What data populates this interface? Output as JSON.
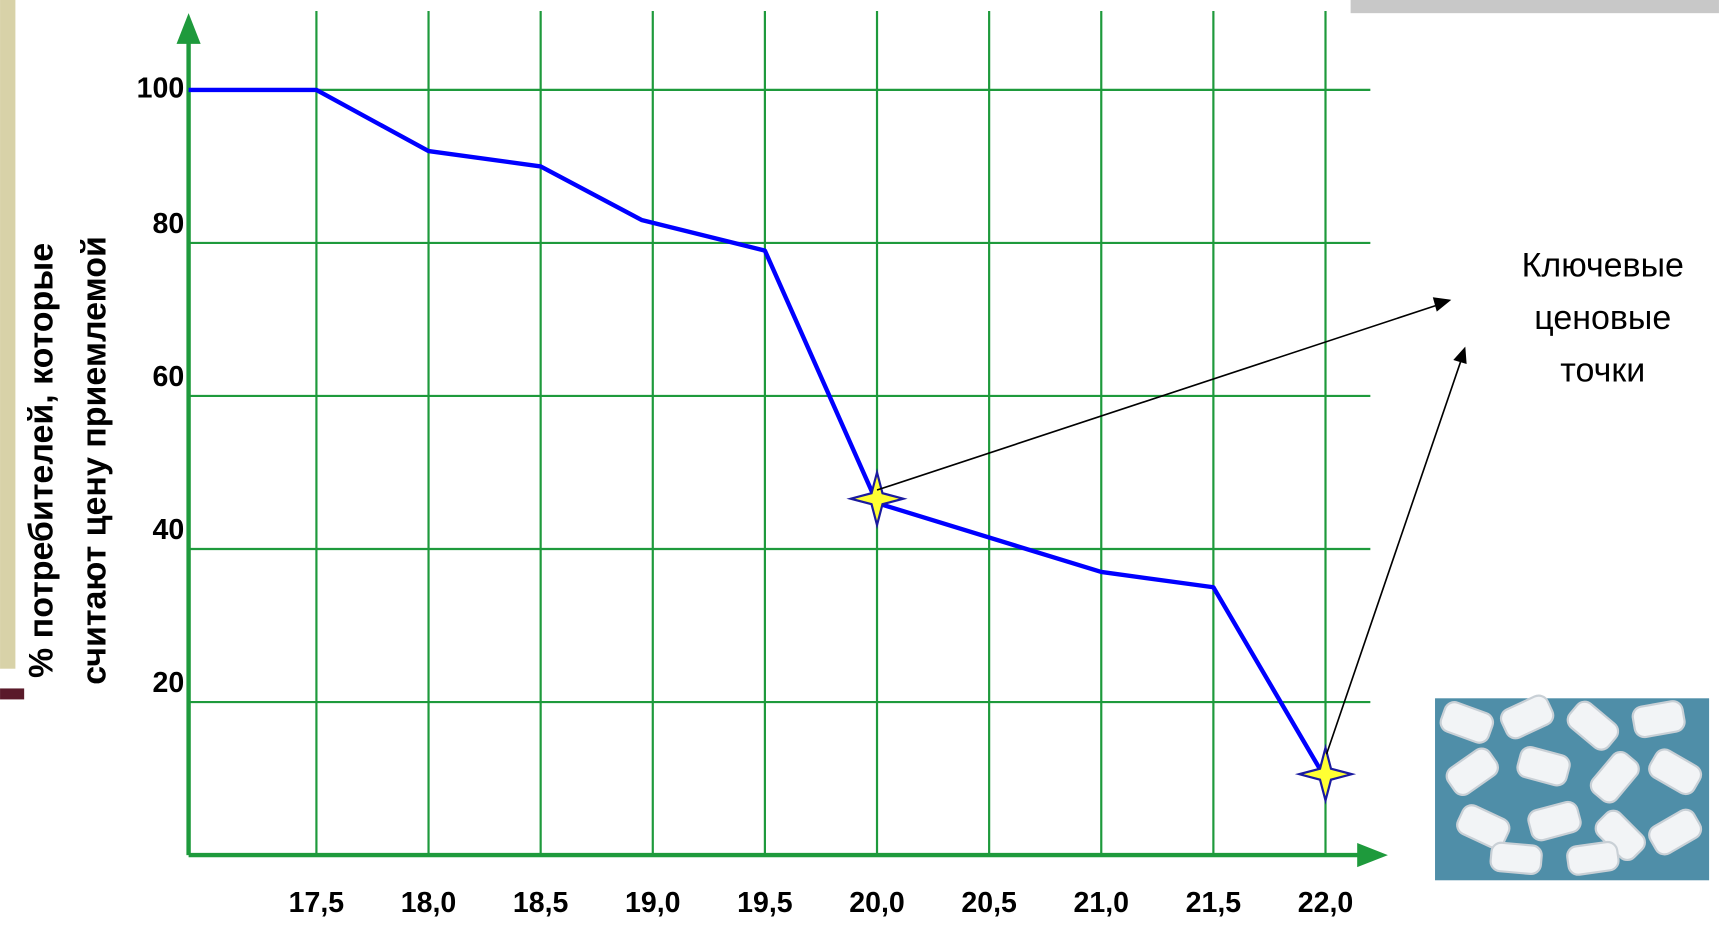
{
  "chart_data": {
    "type": "line",
    "ylabel": [
      "% потребителей, которые",
      "считают цену приемлемой"
    ],
    "annotation": [
      "Ключевые",
      "ценовые",
      "точки"
    ],
    "x": [
      16.93,
      17.5,
      18.0,
      18.5,
      18.95,
      19.5,
      20.0,
      21.0,
      21.5,
      22.0
    ],
    "values": [
      100,
      100,
      92,
      90,
      83,
      79,
      46,
      37,
      35,
      10
    ],
    "color": "#0000ff",
    "grid_color": "#1e9a3c",
    "grid": true,
    "xlim": [
      16.93,
      22.2
    ],
    "ylim": [
      0,
      100
    ],
    "xticks": [
      {
        "value": 17.5,
        "label": "17,5"
      },
      {
        "value": 18.0,
        "label": "18,0"
      },
      {
        "value": 18.5,
        "label": "18,5"
      },
      {
        "value": 19.0,
        "label": "19,0"
      },
      {
        "value": 19.5,
        "label": "19,5"
      },
      {
        "value": 20.0,
        "label": "20,0"
      },
      {
        "value": 20.5,
        "label": "20,5"
      },
      {
        "value": 21.0,
        "label": "21,0"
      },
      {
        "value": 21.5,
        "label": "21,5"
      },
      {
        "value": 22.0,
        "label": "22,0"
      }
    ],
    "yticks": [
      20,
      40,
      60,
      80,
      100
    ]
  }
}
